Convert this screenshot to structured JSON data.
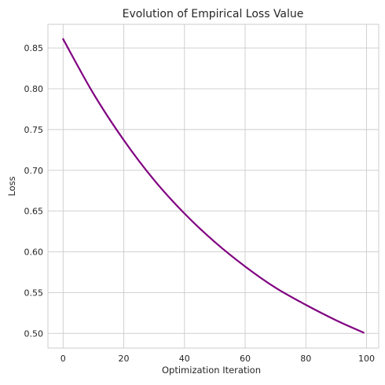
{
  "chart_data": {
    "type": "line",
    "title": "Evolution of Empirical Loss Value",
    "xlabel": "Optimization Iteration",
    "ylabel": "Loss",
    "xlim": [
      -5,
      104
    ],
    "ylim": [
      0.482,
      0.879
    ],
    "grid": true,
    "x_ticks": [
      0,
      20,
      40,
      60,
      80,
      100
    ],
    "y_ticks": [
      0.5,
      0.55,
      0.6,
      0.65,
      0.7,
      0.75,
      0.8,
      0.85
    ],
    "x_tick_labels": [
      "0",
      "20",
      "40",
      "60",
      "80",
      "100"
    ],
    "y_tick_labels": [
      "0.50",
      "0.55",
      "0.60",
      "0.65",
      "0.70",
      "0.75",
      "0.80",
      "0.85"
    ],
    "series": [
      {
        "color": "#800080",
        "x": [
          0,
          10,
          20,
          30,
          40,
          50,
          60,
          70,
          80,
          90,
          99
        ],
        "y": [
          0.861,
          0.794,
          0.737,
          0.688,
          0.647,
          0.612,
          0.582,
          0.556,
          0.535,
          0.516,
          0.501
        ]
      }
    ]
  }
}
